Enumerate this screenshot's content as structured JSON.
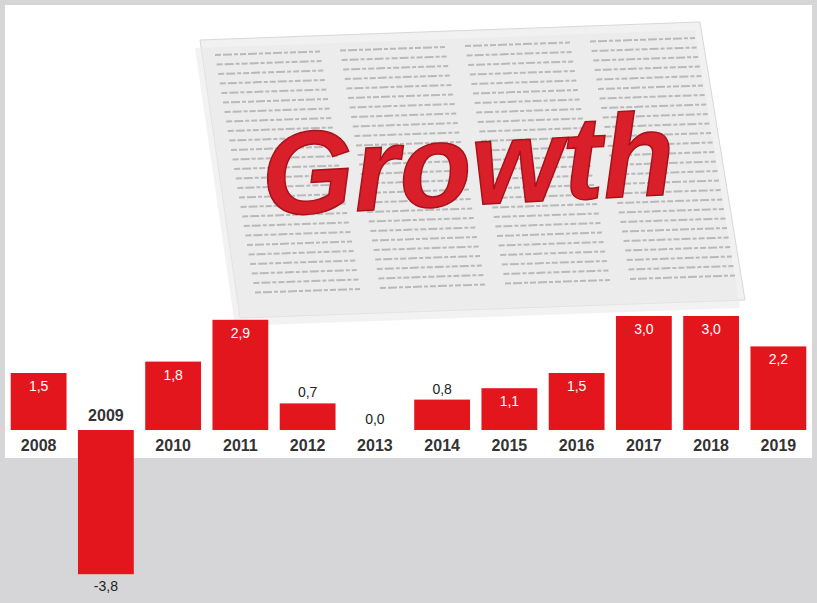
{
  "chart_data": {
    "type": "bar",
    "title": "Growth",
    "categories": [
      "2008",
      "2009",
      "2010",
      "2011",
      "2012",
      "2013",
      "2014",
      "2015",
      "2016",
      "2017",
      "2018",
      "2019"
    ],
    "values": [
      1.5,
      -3.8,
      1.8,
      2.9,
      0.7,
      0.0,
      0.8,
      1.1,
      1.5,
      3.0,
      3.0,
      2.2
    ],
    "value_labels": [
      "1,5",
      "-3,8",
      "1,8",
      "2,9",
      "0,7",
      "0,0",
      "0,8",
      "1,1",
      "1,5",
      "3,0",
      "3,0",
      "2,2"
    ],
    "color": "#e3161e",
    "ylim": [
      -3.8,
      3.0
    ],
    "data_labels": true,
    "tick_labels": "x"
  }
}
